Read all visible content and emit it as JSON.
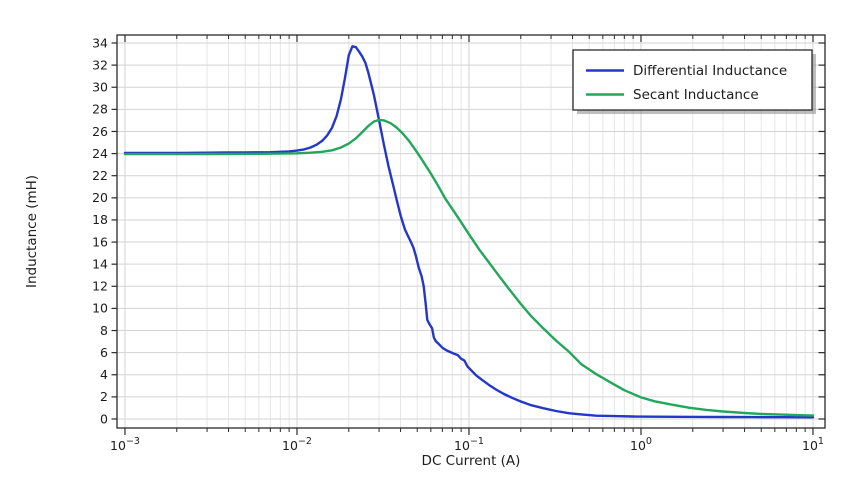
{
  "chart_data": {
    "type": "line",
    "title": "",
    "xlabel": "DC Current (A)",
    "ylabel": "Inductance (mH)",
    "x_scale": "log",
    "x_tick_base": 10,
    "x_tick_exponents": [
      -3,
      -2,
      -1,
      0,
      1
    ],
    "x_minor_multiples": [
      2,
      3,
      4,
      5,
      6,
      7,
      8,
      9
    ],
    "xlim_log10": [
      -3.047,
      1.07
    ],
    "ylim": [
      -0.82,
      34.82
    ],
    "y_ticks": {
      "min": 0,
      "max": 34,
      "step": 2
    },
    "grid": {
      "major": true,
      "minor_x": true
    },
    "legend": {
      "position": "top-right",
      "border": true
    },
    "series": [
      {
        "name": "Differential Inductance",
        "color": "#2436cc",
        "points": [
          [
            0.001,
            24.05
          ],
          [
            0.002,
            24.06
          ],
          [
            0.003,
            24.08
          ],
          [
            0.004,
            24.1
          ],
          [
            0.005,
            24.1
          ],
          [
            0.006,
            24.12
          ],
          [
            0.007,
            24.13
          ],
          [
            0.008,
            24.16
          ],
          [
            0.009,
            24.2
          ],
          [
            0.01,
            24.27
          ],
          [
            0.011,
            24.38
          ],
          [
            0.012,
            24.55
          ],
          [
            0.013,
            24.8
          ],
          [
            0.014,
            25.15
          ],
          [
            0.015,
            25.65
          ],
          [
            0.016,
            26.35
          ],
          [
            0.017,
            27.4
          ],
          [
            0.018,
            28.9
          ],
          [
            0.019,
            30.8
          ],
          [
            0.02,
            32.9
          ],
          [
            0.021,
            33.7
          ],
          [
            0.022,
            33.62
          ],
          [
            0.023,
            33.2
          ],
          [
            0.024,
            32.75
          ],
          [
            0.025,
            32.2
          ],
          [
            0.026,
            31.3
          ],
          [
            0.028,
            29.3
          ],
          [
            0.03,
            27.0
          ],
          [
            0.032,
            24.8
          ],
          [
            0.034,
            22.9
          ],
          [
            0.036,
            21.3
          ],
          [
            0.038,
            19.8
          ],
          [
            0.04,
            18.4
          ],
          [
            0.0415,
            17.6
          ],
          [
            0.0425,
            17.1
          ],
          [
            0.044,
            16.6
          ],
          [
            0.046,
            16.0
          ],
          [
            0.0475,
            15.5
          ],
          [
            0.049,
            14.8
          ],
          [
            0.051,
            13.7
          ],
          [
            0.053,
            12.9
          ],
          [
            0.0545,
            12.0
          ],
          [
            0.056,
            10.4
          ],
          [
            0.0572,
            8.95
          ],
          [
            0.059,
            8.55
          ],
          [
            0.061,
            8.2
          ],
          [
            0.0625,
            7.35
          ],
          [
            0.064,
            7.05
          ],
          [
            0.067,
            6.75
          ],
          [
            0.07,
            6.45
          ],
          [
            0.074,
            6.2
          ],
          [
            0.078,
            6.05
          ],
          [
            0.082,
            5.9
          ],
          [
            0.086,
            5.78
          ],
          [
            0.09,
            5.45
          ],
          [
            0.094,
            5.28
          ],
          [
            0.098,
            4.75
          ],
          [
            0.103,
            4.4
          ],
          [
            0.11,
            3.95
          ],
          [
            0.12,
            3.5
          ],
          [
            0.13,
            3.1
          ],
          [
            0.145,
            2.62
          ],
          [
            0.16,
            2.25
          ],
          [
            0.18,
            1.88
          ],
          [
            0.2,
            1.58
          ],
          [
            0.23,
            1.25
          ],
          [
            0.27,
            0.98
          ],
          [
            0.32,
            0.72
          ],
          [
            0.38,
            0.52
          ],
          [
            0.45,
            0.42
          ],
          [
            0.55,
            0.3
          ],
          [
            0.7,
            0.26
          ],
          [
            0.9,
            0.23
          ],
          [
            1.2,
            0.21
          ],
          [
            1.6,
            0.2
          ],
          [
            2.2,
            0.19
          ],
          [
            3.0,
            0.18
          ],
          [
            4.5,
            0.17
          ],
          [
            6.5,
            0.16
          ],
          [
            10,
            0.15
          ]
        ]
      },
      {
        "name": "Secant Inductance",
        "color": "#22a75a",
        "points": [
          [
            0.001,
            23.95
          ],
          [
            0.002,
            23.95
          ],
          [
            0.003,
            23.96
          ],
          [
            0.004,
            23.97
          ],
          [
            0.006,
            23.98
          ],
          [
            0.008,
            24.0
          ],
          [
            0.01,
            24.03
          ],
          [
            0.012,
            24.08
          ],
          [
            0.014,
            24.16
          ],
          [
            0.016,
            24.3
          ],
          [
            0.018,
            24.55
          ],
          [
            0.02,
            24.9
          ],
          [
            0.022,
            25.38
          ],
          [
            0.024,
            25.95
          ],
          [
            0.026,
            26.5
          ],
          [
            0.028,
            26.9
          ],
          [
            0.03,
            27.05
          ],
          [
            0.032,
            27.0
          ],
          [
            0.035,
            26.75
          ],
          [
            0.038,
            26.35
          ],
          [
            0.041,
            25.85
          ],
          [
            0.045,
            25.1
          ],
          [
            0.049,
            24.3
          ],
          [
            0.054,
            23.3
          ],
          [
            0.06,
            22.2
          ],
          [
            0.066,
            21.1
          ],
          [
            0.073,
            19.9
          ],
          [
            0.08,
            19.0
          ],
          [
            0.09,
            17.8
          ],
          [
            0.1,
            16.7
          ],
          [
            0.115,
            15.3
          ],
          [
            0.13,
            14.2
          ],
          [
            0.15,
            12.9
          ],
          [
            0.17,
            11.8
          ],
          [
            0.2,
            10.4
          ],
          [
            0.23,
            9.3
          ],
          [
            0.27,
            8.2
          ],
          [
            0.32,
            7.1
          ],
          [
            0.38,
            6.1
          ],
          [
            0.45,
            4.95
          ],
          [
            0.55,
            4.05
          ],
          [
            0.65,
            3.4
          ],
          [
            0.8,
            2.6
          ],
          [
            1.0,
            1.95
          ],
          [
            1.2,
            1.6
          ],
          [
            1.5,
            1.3
          ],
          [
            1.9,
            1.02
          ],
          [
            2.4,
            0.82
          ],
          [
            3.0,
            0.68
          ],
          [
            4.0,
            0.54
          ],
          [
            5.0,
            0.46
          ],
          [
            6.5,
            0.4
          ],
          [
            8.0,
            0.35
          ],
          [
            10,
            0.31
          ]
        ]
      }
    ]
  },
  "colors": {
    "background": "#ffffff",
    "frame": "#2a2a2a",
    "tick": "#2a2a2a",
    "grid_major": "#d3d3d3",
    "grid_minor": "#e6e6e6",
    "text": "#1c1c1c",
    "legend_border": "#2b2b2b",
    "legend_background": "#ffffff",
    "legend_shadow": "rgba(125,125,125,0.50)"
  }
}
